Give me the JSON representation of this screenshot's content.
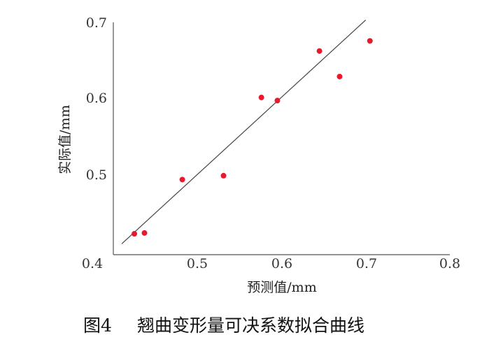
{
  "chart_data": {
    "type": "scatter",
    "xlabel": "预测值/mm",
    "ylabel": "实际值/mm",
    "xlim": [
      0.4,
      0.8
    ],
    "ylim": [
      0.4,
      0.7
    ],
    "x_ticks": [
      "0.4",
      "0.5",
      "0.6",
      "0.7",
      "0.8"
    ],
    "y_ticks": [
      "0.5",
      "0.6",
      "0.7"
    ],
    "grid": false,
    "points": [
      {
        "x": 0.425,
        "y": 0.427
      },
      {
        "x": 0.437,
        "y": 0.428
      },
      {
        "x": 0.482,
        "y": 0.497
      },
      {
        "x": 0.531,
        "y": 0.502
      },
      {
        "x": 0.576,
        "y": 0.603
      },
      {
        "x": 0.595,
        "y": 0.599
      },
      {
        "x": 0.645,
        "y": 0.663
      },
      {
        "x": 0.669,
        "y": 0.63
      },
      {
        "x": 0.705,
        "y": 0.676
      }
    ],
    "fit_line": {
      "x": [
        0.41,
        0.7
      ],
      "y": [
        0.414,
        0.703
      ]
    },
    "point_color": "#e8192c",
    "line_color": "#444444"
  },
  "caption": {
    "figure_number": "图4",
    "title": "翘曲变形量可决系数拟合曲线"
  }
}
